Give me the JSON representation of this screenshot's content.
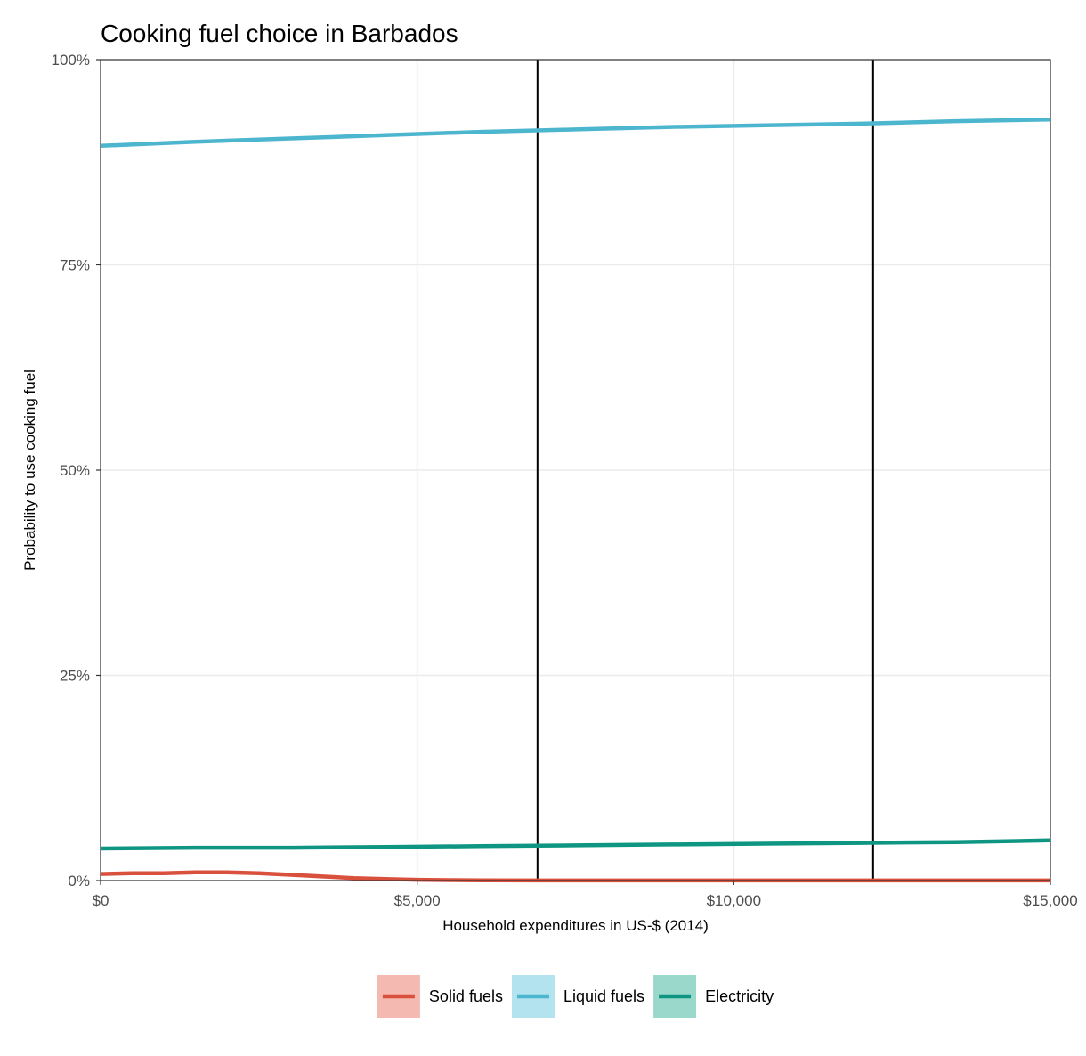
{
  "chart_data": {
    "type": "line",
    "title": "Cooking fuel choice in Barbados",
    "xlabel": "Household expenditures in US-$ (2014)",
    "ylabel": "Probability to use cooking fuel",
    "xlim": [
      0,
      15000
    ],
    "ylim": [
      0,
      1
    ],
    "x_ticks": [
      0,
      5000,
      10000,
      15000
    ],
    "x_tick_labels": [
      "$0",
      "$5,000",
      "$10,000",
      "$15,000"
    ],
    "y_ticks": [
      0,
      0.25,
      0.5,
      0.75,
      1.0
    ],
    "y_tick_labels": [
      "0%",
      "25%",
      "50%",
      "75%",
      "100%"
    ],
    "grid": true,
    "legend_position": "bottom",
    "vertical_lines": [
      6900,
      12200
    ],
    "series": [
      {
        "name": "Solid fuels",
        "color": "#d9503c",
        "legend_fill": "#f4b9b0",
        "x": [
          0,
          500,
          1000,
          1500,
          2000,
          2500,
          3000,
          3500,
          4000,
          4500,
          5000,
          5500,
          6000,
          7000,
          8000,
          9000,
          10000,
          11000,
          12000,
          13000,
          14000,
          15000
        ],
        "y": [
          0.008,
          0.009,
          0.009,
          0.01,
          0.01,
          0.009,
          0.007,
          0.005,
          0.003,
          0.002,
          0.001,
          0.0005,
          0.0002,
          0.0001,
          0.0001,
          0.0001,
          0.0001,
          0.0001,
          0.0001,
          0.0001,
          0.0001,
          0.0001
        ]
      },
      {
        "name": "Liquid fuels",
        "color": "#4db6cf",
        "legend_fill": "#b3e3ee",
        "x": [
          0,
          1500,
          3000,
          4500,
          6000,
          7500,
          9000,
          10500,
          12000,
          13500,
          15000
        ],
        "y": [
          0.895,
          0.9,
          0.904,
          0.908,
          0.912,
          0.915,
          0.918,
          0.92,
          0.922,
          0.925,
          0.927
        ]
      },
      {
        "name": "Electricity",
        "color": "#0e9682",
        "legend_fill": "#9bd8cc",
        "x": [
          0,
          1500,
          3000,
          4500,
          6000,
          7500,
          9000,
          10500,
          12000,
          13500,
          15000
        ],
        "y": [
          0.039,
          0.04,
          0.04,
          0.041,
          0.042,
          0.043,
          0.044,
          0.045,
          0.046,
          0.047,
          0.049
        ]
      }
    ]
  }
}
